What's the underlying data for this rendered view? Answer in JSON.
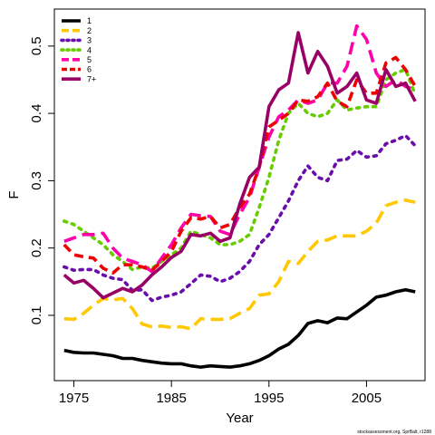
{
  "chart_data": {
    "type": "line",
    "xlabel": "Year",
    "ylabel": "F",
    "xlim": [
      1973,
      2011
    ],
    "ylim": [
      0.003,
      0.555
    ],
    "xticks": [
      1975,
      1985,
      1995,
      2005
    ],
    "yticks": [
      0.1,
      0.2,
      0.3,
      0.4,
      0.5
    ],
    "grid": false,
    "legend_position": "top-left",
    "credit": "stockassessment.org, SprBalt, r1288",
    "x": [
      1974,
      1975,
      1976,
      1977,
      1978,
      1979,
      1980,
      1981,
      1982,
      1983,
      1984,
      1985,
      1986,
      1987,
      1988,
      1989,
      1990,
      1991,
      1992,
      1993,
      1994,
      1995,
      1996,
      1997,
      1998,
      1999,
      2000,
      2001,
      2002,
      2003,
      2004,
      2005,
      2006,
      2007,
      2008,
      2009,
      2010
    ],
    "series": [
      {
        "name": "1",
        "color": "#000000",
        "dash": "solid",
        "values": [
          0.048,
          0.045,
          0.044,
          0.044,
          0.042,
          0.04,
          0.036,
          0.036,
          0.033,
          0.031,
          0.029,
          0.028,
          0.028,
          0.025,
          0.023,
          0.025,
          0.024,
          0.023,
          0.025,
          0.028,
          0.033,
          0.04,
          0.05,
          0.057,
          0.07,
          0.088,
          0.092,
          0.089,
          0.096,
          0.095,
          0.105,
          0.115,
          0.127,
          0.13,
          0.135,
          0.138,
          0.135
        ]
      },
      {
        "name": "2",
        "color": "#ffc800",
        "dash": "longdash",
        "values": [
          0.095,
          0.094,
          0.103,
          0.115,
          0.125,
          0.123,
          0.125,
          0.11,
          0.087,
          0.083,
          0.084,
          0.082,
          0.083,
          0.08,
          0.095,
          0.094,
          0.094,
          0.095,
          0.103,
          0.11,
          0.13,
          0.132,
          0.15,
          0.18,
          0.177,
          0.195,
          0.21,
          0.212,
          0.218,
          0.218,
          0.218,
          0.225,
          0.237,
          0.263,
          0.268,
          0.271,
          0.268
        ]
      },
      {
        "name": "3",
        "color": "#6a0dad",
        "dash": "dot",
        "values": [
          0.172,
          0.167,
          0.168,
          0.168,
          0.16,
          0.155,
          0.153,
          0.137,
          0.138,
          0.122,
          0.127,
          0.13,
          0.135,
          0.147,
          0.16,
          0.158,
          0.15,
          0.155,
          0.165,
          0.18,
          0.205,
          0.22,
          0.245,
          0.27,
          0.3,
          0.322,
          0.305,
          0.3,
          0.33,
          0.332,
          0.345,
          0.335,
          0.337,
          0.355,
          0.36,
          0.367,
          0.352
        ]
      },
      {
        "name": "4",
        "color": "#66cc00",
        "dash": "dot",
        "values": [
          0.24,
          0.235,
          0.225,
          0.215,
          0.205,
          0.19,
          0.18,
          0.168,
          0.172,
          0.17,
          0.18,
          0.19,
          0.2,
          0.225,
          0.22,
          0.215,
          0.205,
          0.205,
          0.21,
          0.22,
          0.26,
          0.305,
          0.36,
          0.4,
          0.415,
          0.4,
          0.395,
          0.4,
          0.42,
          0.405,
          0.408,
          0.41,
          0.41,
          0.45,
          0.46,
          0.465,
          0.428
        ]
      },
      {
        "name": "5",
        "color": "#ff00aa",
        "dash": "longdash",
        "values": [
          0.21,
          0.215,
          0.22,
          0.22,
          0.222,
          0.2,
          0.185,
          0.18,
          0.175,
          0.165,
          0.185,
          0.205,
          0.23,
          0.25,
          0.248,
          0.247,
          0.225,
          0.22,
          0.25,
          0.275,
          0.32,
          0.365,
          0.395,
          0.405,
          0.42,
          0.415,
          0.42,
          0.445,
          0.445,
          0.47,
          0.53,
          0.51,
          0.46,
          0.44,
          0.45,
          0.44,
          0.435
        ]
      },
      {
        "name": "6",
        "color": "#ee0000",
        "dash": "dash",
        "values": [
          0.205,
          0.19,
          0.187,
          0.185,
          0.17,
          0.163,
          0.175,
          0.175,
          0.172,
          0.167,
          0.18,
          0.195,
          0.225,
          0.245,
          0.243,
          0.247,
          0.23,
          0.235,
          0.26,
          0.28,
          0.32,
          0.38,
          0.39,
          0.4,
          0.42,
          0.418,
          0.425,
          0.445,
          0.418,
          0.41,
          0.45,
          0.43,
          0.43,
          0.475,
          0.483,
          0.465,
          0.44
        ]
      },
      {
        "name": "7+",
        "color": "#990066",
        "dash": "solid",
        "values": [
          0.16,
          0.148,
          0.152,
          0.14,
          0.126,
          0.133,
          0.14,
          0.135,
          0.145,
          0.16,
          0.172,
          0.186,
          0.195,
          0.22,
          0.218,
          0.222,
          0.21,
          0.215,
          0.265,
          0.305,
          0.32,
          0.41,
          0.435,
          0.445,
          0.52,
          0.46,
          0.492,
          0.47,
          0.43,
          0.44,
          0.46,
          0.42,
          0.415,
          0.465,
          0.44,
          0.445,
          0.418
        ]
      }
    ]
  }
}
